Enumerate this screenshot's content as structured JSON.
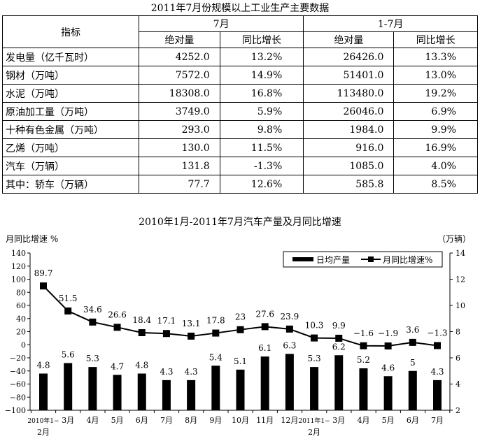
{
  "table": {
    "title": "2011年7月份规模以上工业生产主要数据",
    "header_indicator": "指标",
    "group_july": "7月",
    "group_jan_jul": "1-7月",
    "sub_abs": "绝对量",
    "sub_yoy": "同比增长",
    "rows": [
      [
        "发电量（亿千瓦时）",
        "4252.0",
        "13.2%",
        "26426.0",
        "13.3%"
      ],
      [
        "钢材（万吨）",
        "7572.0",
        "14.9%",
        "51401.0",
        "13.0%"
      ],
      [
        "水泥（万吨）",
        "18308.0",
        "16.8%",
        "113480.0",
        "19.2%"
      ],
      [
        "原油加工量（万吨）",
        "3749.0",
        "5.9%",
        "26046.0",
        "6.9%"
      ],
      [
        "十种有色金属（万吨）",
        "293.0",
        "9.8%",
        "1984.0",
        "9.9%"
      ],
      [
        "乙烯（万吨）",
        "130.0",
        "11.5%",
        "916.0",
        "16.9%"
      ],
      [
        "汽车（万辆）",
        "131.8",
        "-1.3%",
        "1085.0",
        "4.0%"
      ],
      [
        "其中：轿车（万辆）",
        "77.7",
        "12.6%",
        "585.8",
        "8.5%"
      ]
    ]
  },
  "chart_data": {
    "type": "bar+line",
    "title": "2010年1月-2011年7月汽车产量及月同比增速",
    "ylabel_left": "月同比增速 %",
    "ylabel_right": "（万辆）",
    "ylim_left": [
      -100,
      140
    ],
    "yticks_left": [
      "140",
      "120",
      "100",
      "80",
      "60",
      "40",
      "20",
      "0",
      "−20",
      "−40",
      "−60",
      "−80",
      "−100"
    ],
    "ylim_right": [
      2,
      14
    ],
    "yticks_right": [
      "14",
      "12",
      "10",
      "8",
      "6",
      "4",
      "2"
    ],
    "legend_position": "top-right",
    "categories": [
      [
        "2010年1−",
        "2月"
      ],
      [
        "3月"
      ],
      [
        "4月"
      ],
      [
        "5月"
      ],
      [
        "6月"
      ],
      [
        "7月"
      ],
      [
        "8月"
      ],
      [
        "9月"
      ],
      [
        "10月"
      ],
      [
        "11月"
      ],
      [
        "12月"
      ],
      [
        "2011年1−",
        "2月"
      ],
      [
        "3月"
      ],
      [
        "4月"
      ],
      [
        "5月"
      ],
      [
        "6月"
      ],
      [
        "7月"
      ]
    ],
    "series": [
      {
        "name": "日均产量",
        "type": "bar",
        "axis": "right",
        "values": [
          4.8,
          5.6,
          5.3,
          4.7,
          4.8,
          4.3,
          4.3,
          5.4,
          5.1,
          6.1,
          6.3,
          5.3,
          6.2,
          5.2,
          4.6,
          5,
          4.3
        ],
        "labels": [
          "4.8",
          "5.6",
          "5.3",
          "4.7",
          "4.8",
          "4.3",
          "4.3",
          "5.4",
          "5.1",
          "6.1",
          "6.3",
          "5.3",
          "6.2",
          "5.2",
          "4.6",
          "5",
          "4.3"
        ]
      },
      {
        "name": "月同比增速%",
        "type": "line",
        "axis": "left",
        "values": [
          89.7,
          51.5,
          34.6,
          26.6,
          18.4,
          17.1,
          13.1,
          17.8,
          23,
          27.6,
          23.9,
          10.3,
          9.9,
          -1.6,
          -1.9,
          3.6,
          -1.3
        ],
        "labels": [
          "89.7",
          "51.5",
          "34.6",
          "26.6",
          "18.4",
          "17.1",
          "13.1",
          "17.8",
          "23",
          "27.6",
          "23.9",
          "10.3",
          "9.9",
          "−1.6",
          "−1.9",
          "3.6",
          "−1.3"
        ]
      }
    ],
    "color": "#000000"
  }
}
